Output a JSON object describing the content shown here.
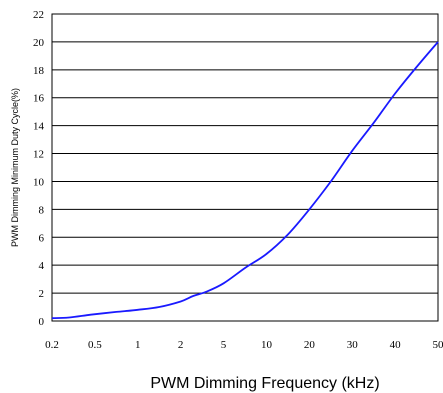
{
  "chart_data": {
    "type": "line",
    "xlabel": "PWM Dimming Frequency (kHz)",
    "ylabel": "PWM Dimming Minimum Duty Cycle(%)",
    "x_ticks": [
      "0.2",
      "0.5",
      "1",
      "2",
      "5",
      "10",
      "20",
      "30",
      "40",
      "50"
    ],
    "y_ticks": [
      "0",
      "2",
      "4",
      "6",
      "8",
      "10",
      "12",
      "14",
      "16",
      "18",
      "20",
      "22"
    ],
    "ylim": [
      0,
      22
    ],
    "grid": "horizontal",
    "line_color": "#1a1aff",
    "series": [
      {
        "x_tick_positions": [
          0,
          0.4,
          0.9,
          1.5,
          2.0,
          2.5,
          3.0,
          3.3,
          3.6,
          4.0,
          4.5,
          5.0,
          5.5,
          6.0,
          6.5,
          7.0,
          7.5,
          8.0,
          8.5,
          9.0
        ],
        "values": [
          0.2,
          0.25,
          0.45,
          0.65,
          0.8,
          1.0,
          1.4,
          1.8,
          2.1,
          2.7,
          3.8,
          4.8,
          6.2,
          8.0,
          10.0,
          12.2,
          14.2,
          16.3,
          18.2,
          20.0
        ]
      }
    ]
  }
}
